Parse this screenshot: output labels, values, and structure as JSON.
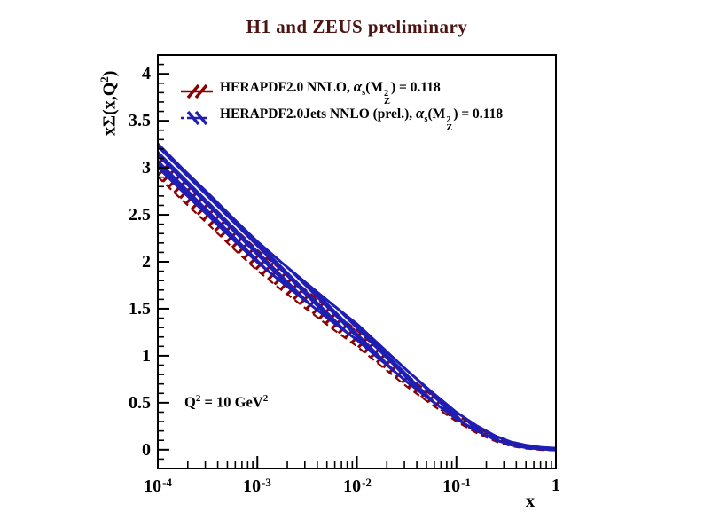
{
  "title": {
    "text": "H1 and ZEUS preliminary",
    "color": "#4d1414"
  },
  "legend": {
    "symbols": {
      "alpha": "α",
      "alpha_sub": "s",
      "m_open": "(M",
      "m_sup": "2",
      "m_sub": "Z"
    },
    "entries": [
      {
        "prefix": "HERAPDF2.0 NNLO, ",
        "suffix": ") = 0.118",
        "marker": "red-hatched-band"
      },
      {
        "prefix": "HERAPDF2.0Jets NNLO (prel.), ",
        "suffix": ") = 0.118",
        "marker": "blue-hatched-band"
      }
    ]
  },
  "annotation": {
    "p1": "Q",
    "sup1": "2",
    "p2": " = 10 GeV",
    "sup2": "2"
  },
  "yaxis_title": {
    "t1": "xΣ(x,Q",
    "sup": "2",
    "t2": ")"
  },
  "chart_data": {
    "type": "area",
    "title": "H1 and ZEUS preliminary",
    "xlabel": "x",
    "ylabel": "xΣ(x,Q²)",
    "annotation": "Q² = 10 GeV²",
    "xscale": "log",
    "xlim": [
      0.0001,
      1
    ],
    "ylim": [
      -0.2,
      4.2
    ],
    "grid": false,
    "legend_position": "top-left",
    "xticks": [
      {
        "log10x": -4,
        "base": "10",
        "exp": "-4"
      },
      {
        "log10x": -3,
        "base": "10",
        "exp": "-3"
      },
      {
        "log10x": -2,
        "base": "10",
        "exp": "-2"
      },
      {
        "log10x": -1,
        "base": "10",
        "exp": "-1"
      },
      {
        "log10x": 0,
        "base": "1",
        "exp": ""
      }
    ],
    "yticks": [
      {
        "v": 0,
        "label": "0"
      },
      {
        "v": 0.5,
        "label": "0.5"
      },
      {
        "v": 1,
        "label": "1"
      },
      {
        "v": 1.5,
        "label": "1.5"
      },
      {
        "v": 2,
        "label": "2"
      },
      {
        "v": 2.5,
        "label": "2.5"
      },
      {
        "v": 3,
        "label": "3"
      },
      {
        "v": 3.5,
        "label": "3.5"
      },
      {
        "v": 4,
        "label": "4"
      }
    ],
    "x": [
      0.0001,
      0.000178,
      0.000316,
      0.000562,
      0.001,
      0.00178,
      0.00316,
      0.00562,
      0.01,
      0.0178,
      0.0316,
      0.0562,
      0.1,
      0.158,
      0.251,
      0.355,
      0.501,
      0.708,
      1.0
    ],
    "series": [
      {
        "name": "HERAPDF2.0 NNLO, αs(MZ²) = 0.118",
        "color": "#8b0000",
        "style": "hatched-band-dashed-edge",
        "upper": [
          3.155,
          2.893,
          2.641,
          2.378,
          2.126,
          1.902,
          1.689,
          1.475,
          1.271,
          1.034,
          0.797,
          0.579,
          0.371,
          0.237,
          0.127,
          0.07,
          0.038,
          0.018,
          0.01
        ],
        "lower": [
          2.905,
          2.651,
          2.405,
          2.15,
          1.906,
          1.694,
          1.493,
          1.291,
          1.101,
          0.886,
          0.673,
          0.483,
          0.301,
          0.181,
          0.087,
          0.038,
          0.012,
          -0.002,
          -0.006
        ]
      },
      {
        "name": "HERAPDF2.0Jets NNLO (prel.), αs(MZ²) = 0.118",
        "color": "#1e1eb4",
        "style": "hatched-band-solid-edge",
        "upper": [
          3.255,
          2.989,
          2.735,
          2.47,
          2.214,
          1.986,
          1.767,
          1.549,
          1.339,
          1.094,
          0.847,
          0.617,
          0.399,
          0.259,
          0.143,
          0.082,
          0.048,
          0.026,
          0.016
        ],
        "lower": [
          3.005,
          2.747,
          2.499,
          2.242,
          1.994,
          1.778,
          1.571,
          1.365,
          1.169,
          0.946,
          0.723,
          0.521,
          0.329,
          0.203,
          0.103,
          0.05,
          0.022,
          0.006,
          0.0
        ]
      }
    ]
  }
}
